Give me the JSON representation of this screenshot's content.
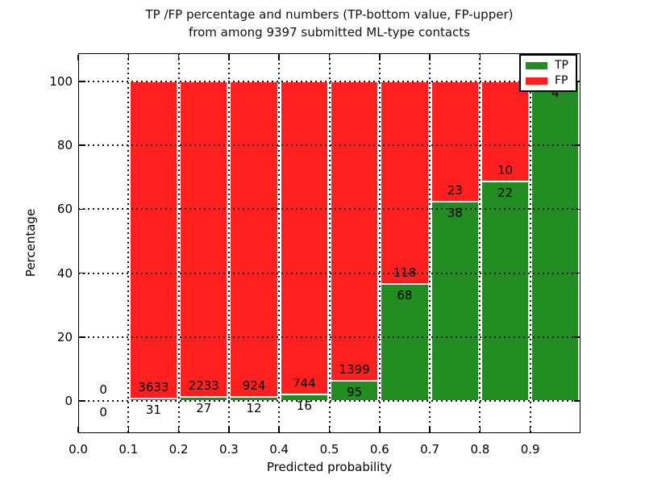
{
  "figure": {
    "title_line1": "TP /FP percentage and numbers (TP-bottom value, FP-upper)",
    "title_line2": "from among 9397 submitted ML-type contacts",
    "xlabel": "Predicted probability",
    "ylabel": "Percentage"
  },
  "legend": {
    "position": "upper right",
    "items": [
      {
        "label": "TP",
        "color": "#228b22"
      },
      {
        "label": "FP",
        "color": "#ff1f1f"
      }
    ]
  },
  "chart_data": {
    "type": "bar",
    "stacked": true,
    "title": "TP /FP percentage and numbers (TP-bottom value, FP-upper) from among 9397 submitted ML-type contacts",
    "xlabel": "Predicted probability",
    "ylabel": "Percentage",
    "total_submitted_contacts": 9397,
    "grid": "dotted",
    "xlim": [
      0.0,
      1.0
    ],
    "ylim": [
      -10,
      110
    ],
    "x_tick_labels": [
      "0.0",
      "0.1",
      "0.2",
      "0.3",
      "0.4",
      "0.5",
      "0.6",
      "0.7",
      "0.8",
      "0.9"
    ],
    "y_tick_values": [
      0,
      20,
      40,
      60,
      80,
      100
    ],
    "series_colors": {
      "tp": "#228b22",
      "fp": "#ff1f1f"
    },
    "bar_edge_color": "#ffffff",
    "bins": [
      {
        "range": [
          0.0,
          0.1
        ],
        "tp": 0,
        "fp": 0,
        "tp_pct": 0,
        "fp_pct": 0
      },
      {
        "range": [
          0.1,
          0.2
        ],
        "tp": 31,
        "fp": 3633,
        "tp_pct": 0.85,
        "fp_pct": 99.15
      },
      {
        "range": [
          0.2,
          0.3
        ],
        "tp": 27,
        "fp": 2233,
        "tp_pct": 1.19,
        "fp_pct": 98.81
      },
      {
        "range": [
          0.3,
          0.4
        ],
        "tp": 12,
        "fp": 924,
        "tp_pct": 1.28,
        "fp_pct": 98.72
      },
      {
        "range": [
          0.4,
          0.5
        ],
        "tp": 16,
        "fp": 744,
        "tp_pct": 2.11,
        "fp_pct": 97.89
      },
      {
        "range": [
          0.5,
          0.6
        ],
        "tp": 95,
        "fp": 1399,
        "tp_pct": 6.36,
        "fp_pct": 93.64
      },
      {
        "range": [
          0.6,
          0.7
        ],
        "tp": 68,
        "fp": 118,
        "tp_pct": 36.56,
        "fp_pct": 63.44
      },
      {
        "range": [
          0.7,
          0.8
        ],
        "tp": 38,
        "fp": 23,
        "tp_pct": 62.3,
        "fp_pct": 37.7
      },
      {
        "range": [
          0.8,
          0.9
        ],
        "tp": 22,
        "fp": 10,
        "tp_pct": 68.75,
        "fp_pct": 31.25
      },
      {
        "range": [
          0.9,
          1.0
        ],
        "tp": 4,
        "fp": 0,
        "tp_pct": 100.0,
        "fp_pct": 0
      }
    ]
  }
}
